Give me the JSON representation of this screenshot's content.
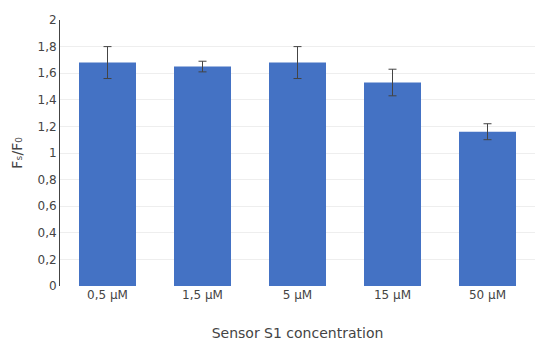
{
  "chart_data": {
    "type": "bar",
    "categories": [
      "0,5 μM",
      "1,5 μM",
      "5 μM",
      "15 μM",
      "50 μM"
    ],
    "values": [
      1.68,
      1.65,
      1.68,
      1.53,
      1.16
    ],
    "errors": [
      0.12,
      0.04,
      0.12,
      0.1,
      0.06
    ],
    "color": "#4472C4",
    "xlabel": "Sensor S1 concentration",
    "ylabel": "Fₛ/F₀",
    "ylim": [
      0,
      2.0
    ],
    "yticks": [
      0,
      {
        "value": 0.2,
        "label": "0,2"
      },
      {
        "value": 0.4,
        "label": "0,4"
      },
      {
        "value": 0.6,
        "label": "0,6"
      },
      {
        "value": 0.8,
        "label": "0,8"
      },
      1,
      {
        "value": 1.2,
        "label": "1,2"
      },
      {
        "value": 1.4,
        "label": "1,4"
      },
      {
        "value": 1.6,
        "label": "1,6"
      },
      {
        "value": 1.8,
        "label": "1,8"
      },
      2
    ],
    "grid": true
  }
}
